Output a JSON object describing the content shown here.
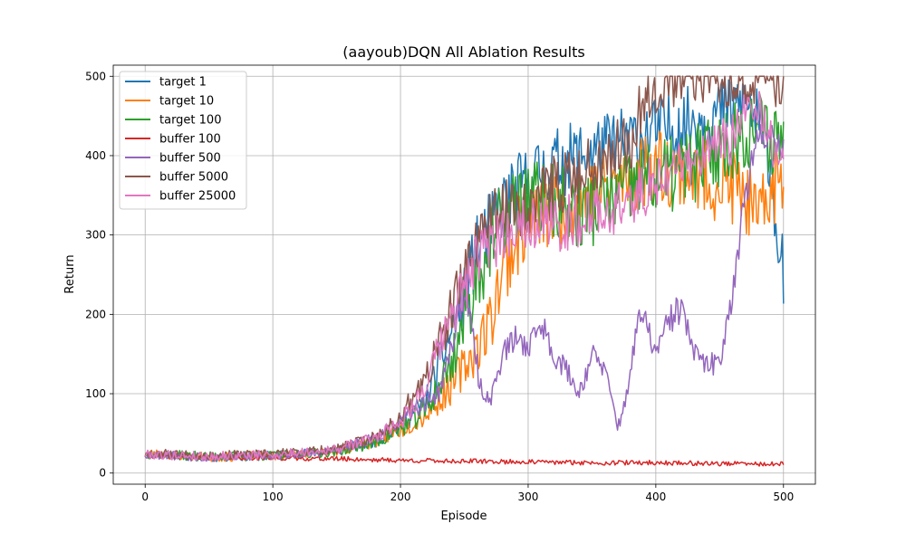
{
  "chart_data": {
    "type": "line",
    "title": "(aayoub)DQN All Ablation Results",
    "xlabel": "Episode",
    "ylabel": "Return",
    "xlim": [
      -25,
      525
    ],
    "ylim": [
      -14,
      514
    ],
    "xticks": [
      0,
      100,
      200,
      300,
      400,
      500
    ],
    "yticks": [
      0,
      100,
      200,
      300,
      400,
      500
    ],
    "grid": true,
    "legend_position": "upper-left",
    "series": [
      {
        "name": "target 1",
        "color": "#1f77b4",
        "keypoints": [
          [
            0,
            25
          ],
          [
            50,
            20
          ],
          [
            100,
            22
          ],
          [
            150,
            28
          ],
          [
            180,
            40
          ],
          [
            200,
            60
          ],
          [
            220,
            90
          ],
          [
            240,
            180
          ],
          [
            260,
            280
          ],
          [
            280,
            340
          ],
          [
            300,
            370
          ],
          [
            320,
            390
          ],
          [
            340,
            400
          ],
          [
            360,
            410
          ],
          [
            380,
            420
          ],
          [
            400,
            430
          ],
          [
            420,
            440
          ],
          [
            440,
            450
          ],
          [
            460,
            460
          ],
          [
            470,
            470
          ],
          [
            480,
            440
          ],
          [
            490,
            400
          ],
          [
            495,
            300
          ],
          [
            500,
            252
          ]
        ],
        "noise_early": 6,
        "noise_late": 45,
        "seed": 11
      },
      {
        "name": "target 10",
        "color": "#ff7f0e",
        "keypoints": [
          [
            0,
            25
          ],
          [
            50,
            20
          ],
          [
            100,
            22
          ],
          [
            150,
            28
          ],
          [
            180,
            40
          ],
          [
            200,
            55
          ],
          [
            220,
            75
          ],
          [
            240,
            110
          ],
          [
            260,
            160
          ],
          [
            270,
            190
          ],
          [
            280,
            260
          ],
          [
            300,
            320
          ],
          [
            320,
            330
          ],
          [
            340,
            340
          ],
          [
            360,
            360
          ],
          [
            380,
            370
          ],
          [
            400,
            390
          ],
          [
            420,
            380
          ],
          [
            440,
            370
          ],
          [
            460,
            360
          ],
          [
            470,
            350
          ],
          [
            480,
            310
          ],
          [
            490,
            360
          ],
          [
            500,
            370
          ]
        ],
        "noise_early": 6,
        "noise_late": 50,
        "seed": 23
      },
      {
        "name": "target 100",
        "color": "#2ca02c",
        "keypoints": [
          [
            0,
            24
          ],
          [
            50,
            21
          ],
          [
            100,
            22
          ],
          [
            150,
            27
          ],
          [
            180,
            38
          ],
          [
            200,
            55
          ],
          [
            220,
            80
          ],
          [
            240,
            140
          ],
          [
            260,
            250
          ],
          [
            280,
            320
          ],
          [
            300,
            350
          ],
          [
            320,
            340
          ],
          [
            340,
            330
          ],
          [
            360,
            340
          ],
          [
            380,
            360
          ],
          [
            400,
            370
          ],
          [
            420,
            380
          ],
          [
            440,
            400
          ],
          [
            460,
            420
          ],
          [
            480,
            440
          ],
          [
            490,
            420
          ],
          [
            500,
            430
          ]
        ],
        "noise_early": 6,
        "noise_late": 50,
        "seed": 37
      },
      {
        "name": "buffer 100",
        "color": "#d62728",
        "keypoints": [
          [
            0,
            22
          ],
          [
            50,
            20
          ],
          [
            100,
            19
          ],
          [
            150,
            18
          ],
          [
            200,
            16
          ],
          [
            250,
            15
          ],
          [
            300,
            14
          ],
          [
            350,
            13
          ],
          [
            400,
            13
          ],
          [
            450,
            12
          ],
          [
            500,
            11
          ]
        ],
        "noise_early": 3,
        "noise_late": 2.5,
        "seed": 41
      },
      {
        "name": "buffer 500",
        "color": "#9467bd",
        "keypoints": [
          [
            0,
            24
          ],
          [
            50,
            20
          ],
          [
            100,
            22
          ],
          [
            150,
            28
          ],
          [
            180,
            45
          ],
          [
            200,
            65
          ],
          [
            220,
            90
          ],
          [
            230,
            100
          ],
          [
            240,
            160
          ],
          [
            250,
            230
          ],
          [
            258,
            160
          ],
          [
            262,
            110
          ],
          [
            270,
            90
          ],
          [
            280,
            150
          ],
          [
            290,
            170
          ],
          [
            300,
            160
          ],
          [
            310,
            190
          ],
          [
            320,
            150
          ],
          [
            330,
            130
          ],
          [
            340,
            100
          ],
          [
            350,
            150
          ],
          [
            360,
            130
          ],
          [
            370,
            60
          ],
          [
            375,
            80
          ],
          [
            385,
            180
          ],
          [
            390,
            200
          ],
          [
            400,
            150
          ],
          [
            410,
            190
          ],
          [
            420,
            210
          ],
          [
            430,
            150
          ],
          [
            440,
            135
          ],
          [
            450,
            140
          ],
          [
            460,
            230
          ],
          [
            470,
            350
          ],
          [
            480,
            420
          ],
          [
            490,
            430
          ],
          [
            500,
            410
          ]
        ],
        "noise_early": 6,
        "noise_late": 22,
        "seed": 53
      },
      {
        "name": "buffer 5000",
        "color": "#8c564b",
        "keypoints": [
          [
            0,
            25
          ],
          [
            50,
            22
          ],
          [
            100,
            24
          ],
          [
            150,
            30
          ],
          [
            180,
            45
          ],
          [
            200,
            70
          ],
          [
            220,
            120
          ],
          [
            240,
            200
          ],
          [
            260,
            300
          ],
          [
            280,
            330
          ],
          [
            300,
            340
          ],
          [
            320,
            360
          ],
          [
            340,
            380
          ],
          [
            360,
            400
          ],
          [
            380,
            420
          ],
          [
            390,
            470
          ],
          [
            400,
            490
          ],
          [
            420,
            500
          ],
          [
            440,
            500
          ],
          [
            460,
            500
          ],
          [
            480,
            500
          ],
          [
            500,
            500
          ]
        ],
        "noise_early": 6,
        "noise_late": 40,
        "seed": 67
      },
      {
        "name": "buffer 25000",
        "color": "#e377c2",
        "keypoints": [
          [
            0,
            24
          ],
          [
            50,
            21
          ],
          [
            100,
            23
          ],
          [
            150,
            30
          ],
          [
            180,
            45
          ],
          [
            200,
            65
          ],
          [
            220,
            110
          ],
          [
            240,
            200
          ],
          [
            260,
            270
          ],
          [
            280,
            300
          ],
          [
            300,
            320
          ],
          [
            320,
            310
          ],
          [
            340,
            320
          ],
          [
            360,
            330
          ],
          [
            380,
            340
          ],
          [
            400,
            370
          ],
          [
            420,
            390
          ],
          [
            440,
            400
          ],
          [
            460,
            420
          ],
          [
            470,
            460
          ],
          [
            480,
            450
          ],
          [
            490,
            420
          ],
          [
            500,
            410
          ]
        ],
        "noise_early": 6,
        "noise_late": 35,
        "seed": 79
      }
    ]
  }
}
